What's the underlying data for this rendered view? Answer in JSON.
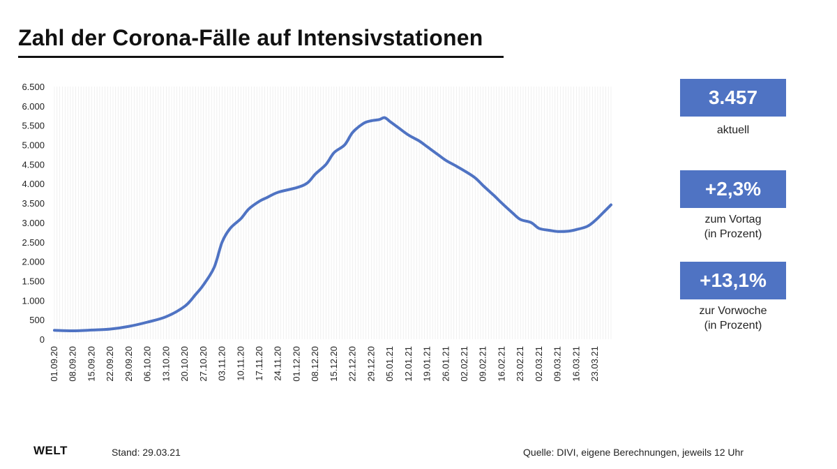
{
  "title": "Zahl der Corona-Fälle auf Intensivstationen",
  "stats": [
    {
      "value": "3.457",
      "label_lines": [
        "aktuell"
      ]
    },
    {
      "value": "+2,3%",
      "label_lines": [
        "zum Vortag",
        "(in Prozent)"
      ]
    },
    {
      "value": "+13,1%",
      "label_lines": [
        "zur Vorwoche",
        "(in Prozent)"
      ]
    }
  ],
  "footer": {
    "logo": "WELT",
    "stand": "Stand:  29.03.21",
    "source": "Quelle: DIVI, eigene Berechnungen, jeweils 12 Uhr"
  },
  "colors": {
    "line": "#4f73c3",
    "box": "#4f73c3",
    "grid": "#e6e6e6"
  },
  "chart_data": {
    "type": "line",
    "title": "Zahl der Corona-Fälle auf Intensivstationen",
    "xlabel": "",
    "ylabel": "",
    "ylim": [
      0,
      6500
    ],
    "yticks": [
      0,
      500,
      1000,
      1500,
      2000,
      2500,
      3000,
      3500,
      4000,
      4500,
      5000,
      5500,
      6000,
      6500
    ],
    "ytick_labels": [
      "0",
      "500",
      "1.000",
      "1.500",
      "2.000",
      "2.500",
      "3.000",
      "3.500",
      "4.000",
      "4.500",
      "5.000",
      "5.500",
      "6.000",
      "6.500"
    ],
    "x_start": "2020-09-01",
    "x_end": "2021-03-29",
    "xtick_labels": [
      "01.09.20",
      "08.09.20",
      "15.09.20",
      "22.09.20",
      "29.09.20",
      "06.10.20",
      "13.10.20",
      "20.10.20",
      "27.10.20",
      "03.11.20",
      "10.11.20",
      "17.11.20",
      "24.11.20",
      "01.12.20",
      "08.12.20",
      "15.12.20",
      "22.12.20",
      "29.12.20",
      "05.01.21",
      "12.01.21",
      "19.01.21",
      "26.01.21",
      "02.02.21",
      "09.02.21",
      "16.02.21",
      "23.02.21",
      "02.03.21",
      "09.03.21",
      "16.03.21",
      "23.03.21"
    ],
    "grid": "vertical",
    "series": [
      {
        "x": [
          "2020-09-01",
          "2020-09-08",
          "2020-09-15",
          "2020-09-22",
          "2020-09-29",
          "2020-10-06",
          "2020-10-13",
          "2020-10-20",
          "2020-10-24",
          "2020-10-27",
          "2020-10-31",
          "2020-11-03",
          "2020-11-06",
          "2020-11-10",
          "2020-11-13",
          "2020-11-17",
          "2020-11-20",
          "2020-11-24",
          "2020-12-01",
          "2020-12-05",
          "2020-12-08",
          "2020-12-12",
          "2020-12-15",
          "2020-12-19",
          "2020-12-22",
          "2020-12-26",
          "2020-12-29",
          "2021-01-01",
          "2021-01-03",
          "2021-01-05",
          "2021-01-08",
          "2021-01-12",
          "2021-01-16",
          "2021-01-19",
          "2021-01-23",
          "2021-01-26",
          "2021-01-30",
          "2021-02-02",
          "2021-02-06",
          "2021-02-09",
          "2021-02-13",
          "2021-02-16",
          "2021-02-20",
          "2021-02-23",
          "2021-02-27",
          "2021-03-02",
          "2021-03-06",
          "2021-03-09",
          "2021-03-13",
          "2021-03-16",
          "2021-03-20",
          "2021-03-23",
          "2021-03-26",
          "2021-03-29"
        ],
        "y": [
          230,
          215,
          235,
          260,
          330,
          440,
          580,
          850,
          1150,
          1400,
          1850,
          2500,
          2850,
          3100,
          3350,
          3550,
          3650,
          3780,
          3900,
          4020,
          4250,
          4500,
          4800,
          5000,
          5320,
          5550,
          5620,
          5650,
          5700,
          5600,
          5450,
          5250,
          5100,
          4950,
          4750,
          4600,
          4450,
          4330,
          4150,
          3950,
          3700,
          3500,
          3250,
          3080,
          3000,
          2850,
          2800,
          2770,
          2780,
          2820,
          2900,
          3050,
          3250,
          3457
        ]
      }
    ]
  }
}
